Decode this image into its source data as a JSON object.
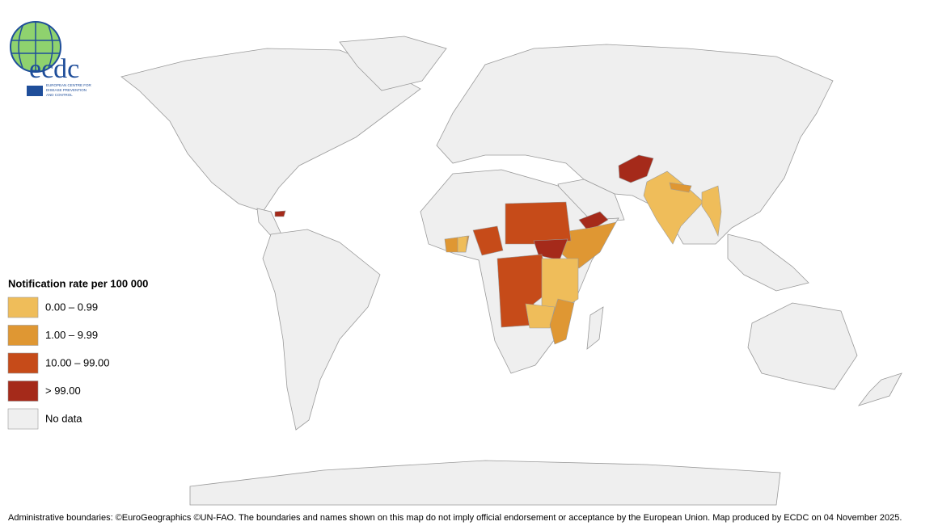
{
  "logo": {
    "name": "ecdc",
    "lines": [
      "EUROPEAN CENTRE FOR",
      "DISEASE PREVENTION",
      "AND CONTROL"
    ]
  },
  "legend": {
    "title": "Notification rate per 100 000",
    "items": [
      {
        "label": "0.00 – 0.99",
        "color": "#efbd5a"
      },
      {
        "label": "1.00 – 9.99",
        "color": "#df9733"
      },
      {
        "label": "10.00 – 99.00",
        "color": "#c64b19"
      },
      {
        "label": "> 99.00",
        "color": "#a52a1a"
      },
      {
        "label": "No data",
        "color": "#efefef"
      }
    ]
  },
  "footer": "Administrative boundaries: ©EuroGeographics ©UN-FAO. The boundaries and names shown on this map do not imply official endorsement or acceptance by the European Union. Map produced by ECDC on 04 November 2025."
}
